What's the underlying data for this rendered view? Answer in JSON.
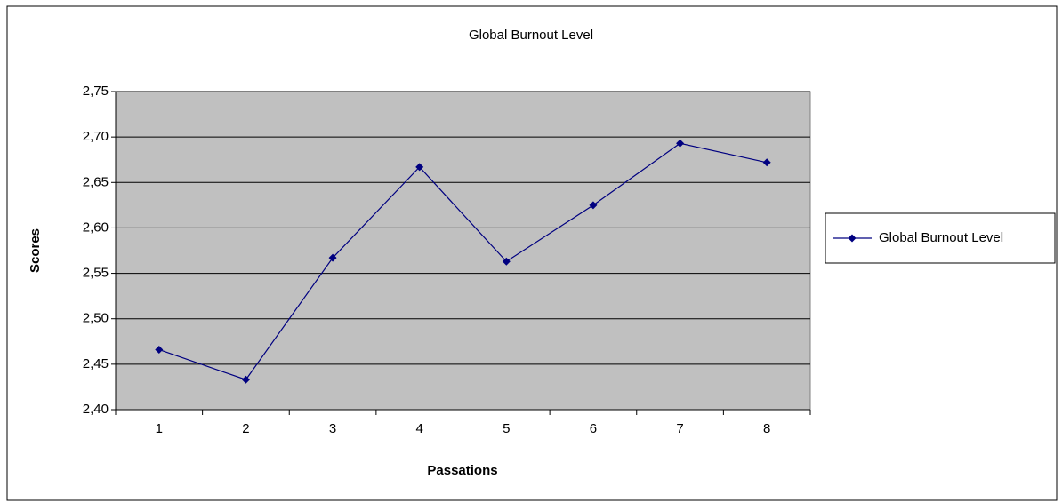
{
  "chart_data": {
    "type": "line",
    "title": "Global Burnout Level",
    "x_label": "Passations",
    "y_label": "Scores",
    "categories": [
      "1",
      "2",
      "3",
      "4",
      "5",
      "6",
      "7",
      "8"
    ],
    "series": [
      {
        "name": "Global Burnout Level",
        "color": "#000080",
        "values": [
          2.466,
          2.433,
          2.567,
          2.667,
          2.563,
          2.625,
          2.693,
          2.672
        ]
      }
    ],
    "ylim": [
      2.4,
      2.75
    ],
    "yticks": [
      {
        "value": 2.4,
        "label": "2,40"
      },
      {
        "value": 2.45,
        "label": "2,45"
      },
      {
        "value": 2.5,
        "label": "2,50"
      },
      {
        "value": 2.55,
        "label": "2,55"
      },
      {
        "value": 2.6,
        "label": "2,60"
      },
      {
        "value": 2.65,
        "label": "2,65"
      },
      {
        "value": 2.7,
        "label": "2,70"
      },
      {
        "value": 2.75,
        "label": "2,75"
      }
    ],
    "grid": true,
    "legend": "right",
    "plot_background": "#c0c0c0"
  }
}
